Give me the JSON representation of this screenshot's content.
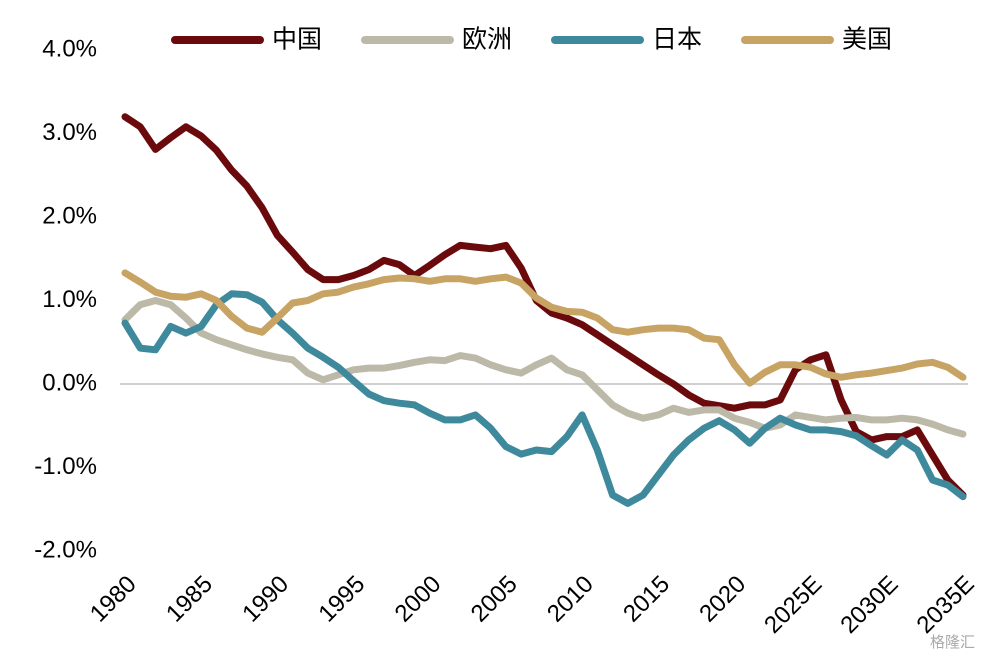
{
  "chart_data": {
    "type": "line",
    "categories": [
      "1980",
      null,
      null,
      null,
      null,
      "1985",
      null,
      null,
      null,
      null,
      "1990",
      null,
      null,
      null,
      null,
      "1995",
      null,
      null,
      null,
      null,
      "2000",
      null,
      null,
      null,
      null,
      "2005",
      null,
      null,
      null,
      null,
      "2010",
      null,
      null,
      null,
      null,
      "2015",
      null,
      null,
      null,
      null,
      "2020",
      null,
      null,
      null,
      null,
      "2025E",
      null,
      null,
      null,
      null,
      "2030E",
      null,
      null,
      null,
      null,
      "2035E"
    ],
    "ylim": [
      -2,
      4
    ],
    "yticks": [
      {
        "value": -2,
        "label": "-2.0%"
      },
      {
        "value": -1,
        "label": "-1.0%"
      },
      {
        "value": 0,
        "label": "0.0%"
      },
      {
        "value": 1,
        "label": "1.0%"
      },
      {
        "value": 2,
        "label": "2.0%"
      },
      {
        "value": 3,
        "label": "3.0%"
      },
      {
        "value": 4,
        "label": "4.0%"
      }
    ],
    "zero_line": true,
    "legend": "top",
    "watermark": "格隆汇",
    "series": [
      {
        "name": "中国",
        "color": "#6b0a0c",
        "values": [
          3.2,
          3.08,
          2.81,
          2.95,
          3.08,
          2.97,
          2.8,
          2.56,
          2.37,
          2.11,
          1.78,
          1.58,
          1.37,
          1.25,
          1.25,
          1.3,
          1.37,
          1.48,
          1.43,
          1.3,
          1.42,
          1.55,
          1.66,
          1.64,
          1.62,
          1.66,
          1.39,
          1.0,
          0.85,
          0.79,
          0.71,
          0.59,
          0.47,
          0.35,
          0.23,
          0.11,
          0.0,
          -0.13,
          -0.23,
          -0.26,
          -0.29,
          -0.25,
          -0.25,
          -0.19,
          0.17,
          0.29,
          0.35,
          -0.19,
          -0.57,
          -0.67,
          -0.63,
          -0.63,
          -0.55,
          -0.85,
          -1.15,
          -1.33
        ]
      },
      {
        "name": "欧洲",
        "color": "#bdb9a8",
        "values": [
          0.77,
          0.95,
          1.0,
          0.95,
          0.79,
          0.61,
          0.53,
          0.47,
          0.41,
          0.36,
          0.32,
          0.29,
          0.13,
          0.05,
          0.11,
          0.17,
          0.19,
          0.19,
          0.22,
          0.26,
          0.29,
          0.28,
          0.34,
          0.31,
          0.23,
          0.17,
          0.13,
          0.23,
          0.31,
          0.17,
          0.11,
          -0.07,
          -0.25,
          -0.35,
          -0.41,
          -0.37,
          -0.29,
          -0.34,
          -0.31,
          -0.31,
          -0.41,
          -0.46,
          -0.53,
          -0.49,
          -0.37,
          -0.4,
          -0.43,
          -0.41,
          -0.4,
          -0.43,
          -0.43,
          -0.41,
          -0.43,
          -0.48,
          -0.55,
          -0.6
        ]
      },
      {
        "name": "日本",
        "color": "#3e8a9c",
        "values": [
          0.73,
          0.43,
          0.41,
          0.69,
          0.61,
          0.69,
          0.95,
          1.08,
          1.07,
          0.98,
          0.77,
          0.61,
          0.43,
          0.32,
          0.2,
          0.04,
          -0.12,
          -0.2,
          -0.23,
          -0.25,
          -0.35,
          -0.43,
          -0.43,
          -0.37,
          -0.53,
          -0.75,
          -0.84,
          -0.79,
          -0.81,
          -0.63,
          -0.37,
          -0.79,
          -1.33,
          -1.43,
          -1.33,
          -1.09,
          -0.85,
          -0.67,
          -0.53,
          -0.44,
          -0.55,
          -0.71,
          -0.53,
          -0.41,
          -0.49,
          -0.55,
          -0.55,
          -0.57,
          -0.62,
          -0.74,
          -0.85,
          -0.67,
          -0.79,
          -1.15,
          -1.21,
          -1.35
        ]
      },
      {
        "name": "美国",
        "color": "#c8a464",
        "values": [
          1.33,
          1.22,
          1.1,
          1.05,
          1.04,
          1.08,
          1.0,
          0.81,
          0.67,
          0.62,
          0.79,
          0.97,
          1.0,
          1.08,
          1.1,
          1.16,
          1.2,
          1.25,
          1.27,
          1.26,
          1.23,
          1.26,
          1.26,
          1.23,
          1.26,
          1.28,
          1.21,
          1.03,
          0.92,
          0.87,
          0.86,
          0.79,
          0.65,
          0.62,
          0.65,
          0.67,
          0.67,
          0.65,
          0.55,
          0.53,
          0.23,
          0.01,
          0.14,
          0.23,
          0.23,
          0.2,
          0.12,
          0.08,
          0.11,
          0.13,
          0.16,
          0.19,
          0.24,
          0.26,
          0.2,
          0.08
        ]
      }
    ]
  }
}
